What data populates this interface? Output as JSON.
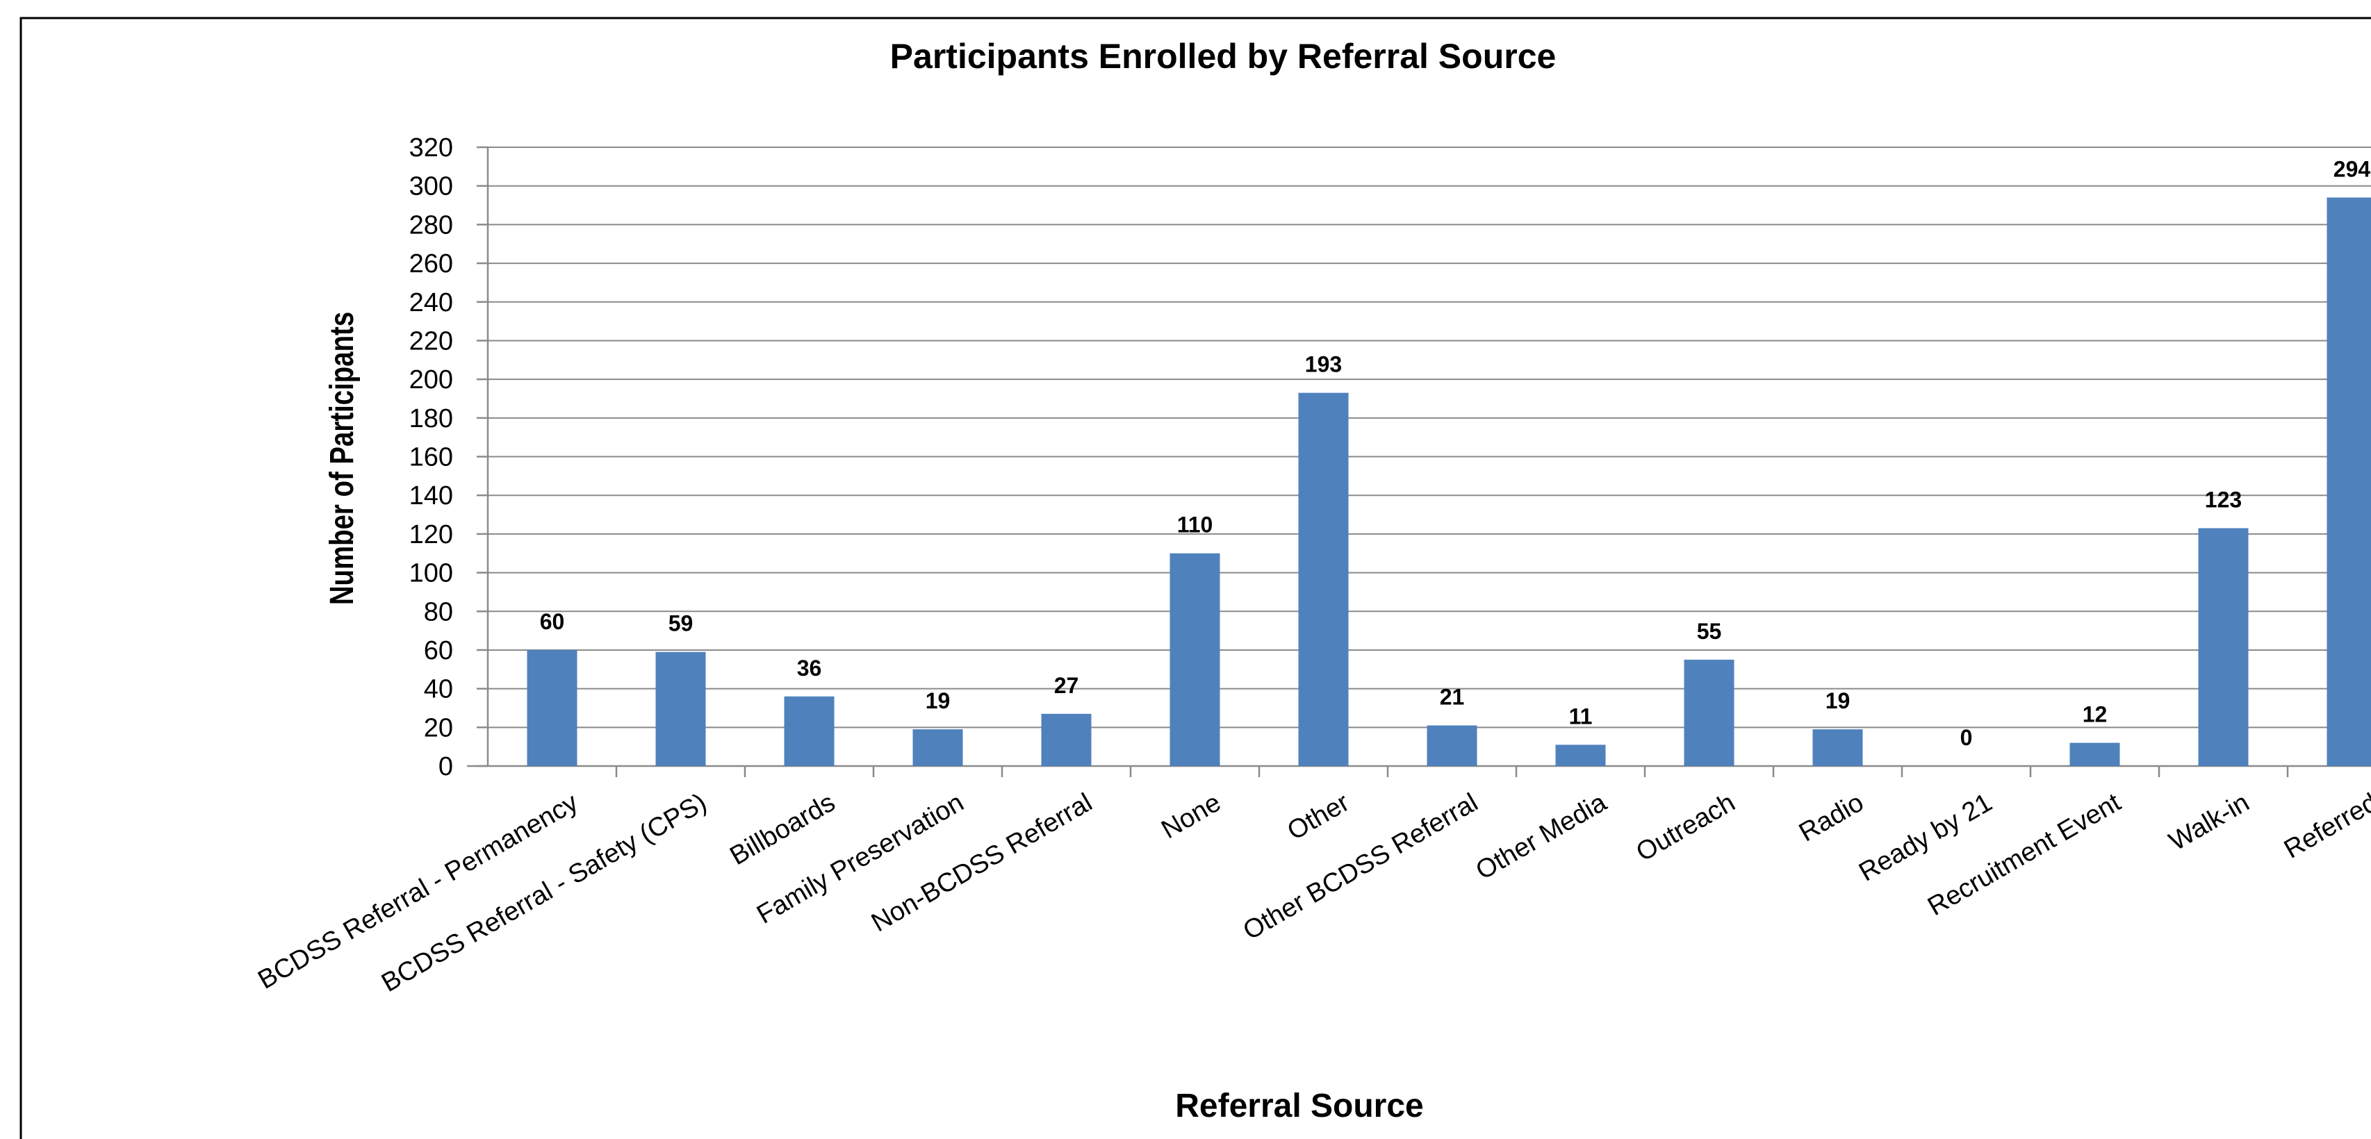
{
  "chart_data": {
    "type": "bar",
    "title": "Participants Enrolled by Referral Source",
    "xlabel": "Referral Source",
    "ylabel": "Number of Participants",
    "ylim": [
      0,
      320
    ],
    "yticks": [
      0,
      20,
      40,
      60,
      80,
      100,
      120,
      140,
      160,
      180,
      200,
      220,
      240,
      260,
      280,
      300,
      320
    ],
    "grid": true,
    "legend": "none",
    "bar_color": "#4f81bd",
    "categories": [
      "BCDSS Referral - Permanency",
      "BCDSS Referral - Safety (CPS)",
      "Billboards",
      "Family Preservation",
      "Non-BCDSS Referral",
      "None",
      "Other",
      "Other BCDSS Referral",
      "Other Media",
      "Outreach",
      "Radio",
      "Ready by 21",
      "Recruitment Event",
      "Walk-in",
      "Referred"
    ],
    "values": [
      60,
      59,
      36,
      19,
      27,
      110,
      193,
      21,
      11,
      55,
      19,
      0,
      12,
      123,
      294
    ],
    "data_labels": [
      "60",
      "59",
      "36",
      "19",
      "27",
      "110",
      "193",
      "21",
      "11",
      "55",
      "19",
      "0",
      "12",
      "123",
      "294"
    ]
  }
}
